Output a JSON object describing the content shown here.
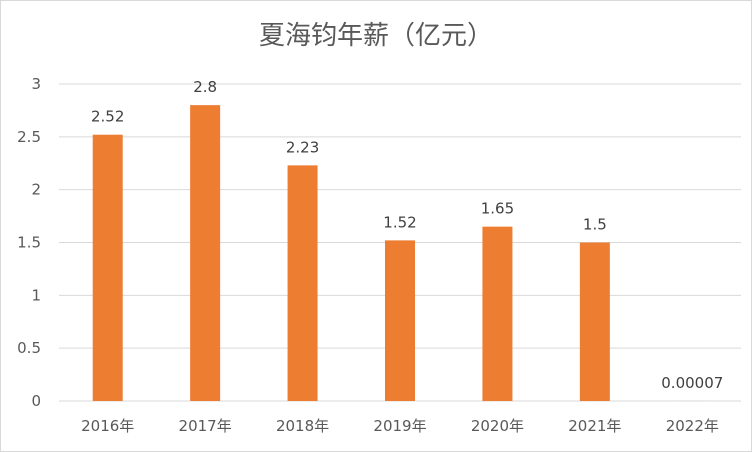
{
  "chart_data": {
    "type": "bar",
    "title": "夏海钧年薪（亿元）",
    "categories": [
      "2016年",
      "2017年",
      "2018年",
      "2019年",
      "2020年",
      "2021年",
      "2022年"
    ],
    "values": [
      2.52,
      2.8,
      2.23,
      1.52,
      1.65,
      1.5,
      7e-05
    ],
    "data_labels": [
      "2.52",
      "2.8",
      "2.23",
      "1.52",
      "1.65",
      "1.5",
      "0.00007"
    ],
    "y_ticks": [
      "0",
      "0.5",
      "1",
      "1.5",
      "2",
      "2.5",
      "3"
    ],
    "ylim": [
      0,
      3
    ],
    "grid": true,
    "legend": "none",
    "bar_color": "#ED7D31",
    "xlabel": "",
    "ylabel": ""
  }
}
